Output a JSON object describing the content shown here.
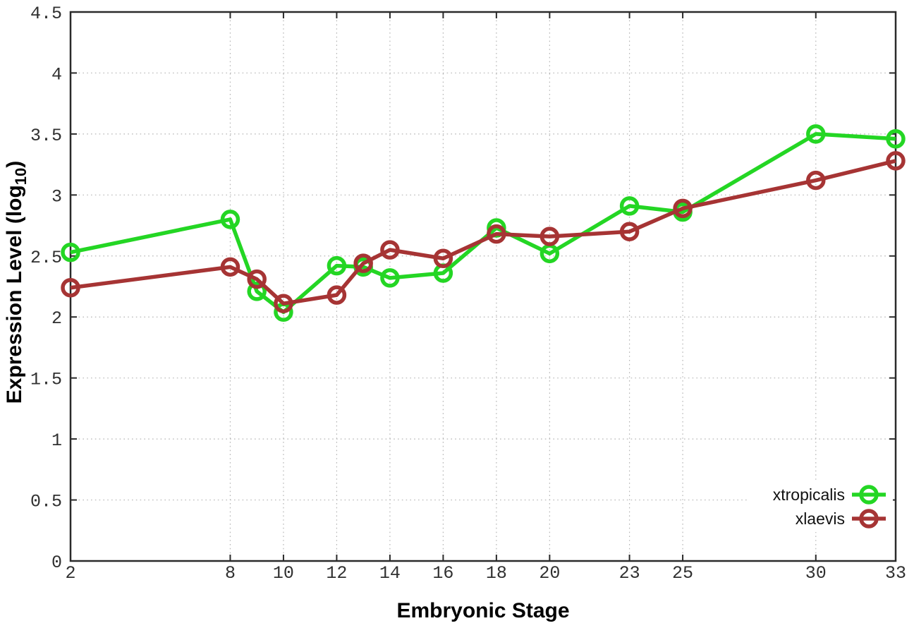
{
  "chart_data": {
    "type": "line",
    "title": "",
    "xlabel": "Embryonic Stage",
    "ylabel": "Expression Level (log10)",
    "ylabel_parts": {
      "main": "Expression Level (log",
      "sub": "10",
      "end": ")"
    },
    "xlim": [
      2,
      33
    ],
    "ylim": [
      0,
      4.5
    ],
    "grid": true,
    "legend_position": "inside-bottom-right",
    "x": [
      2,
      8,
      9,
      10,
      12,
      13,
      14,
      16,
      18,
      20,
      23,
      25,
      30,
      33
    ],
    "xticks": [
      2,
      8,
      10,
      12,
      14,
      16,
      18,
      20,
      23,
      25,
      30,
      33
    ],
    "xtick_labels": [
      "2",
      "8",
      "10",
      "12",
      "14",
      "16",
      "18",
      "20",
      "23",
      "25",
      "30",
      "33"
    ],
    "yticks": [
      0,
      0.5,
      1,
      1.5,
      2,
      2.5,
      3,
      3.5,
      4,
      4.5
    ],
    "ytick_labels": [
      "0",
      "0.5",
      "1",
      "1.5",
      "2",
      "2.5",
      "3",
      "3.5",
      "4",
      "4.5"
    ],
    "series": [
      {
        "name": "xtropicalis",
        "color": "#24d624",
        "values": [
          2.53,
          2.8,
          2.21,
          2.04,
          2.42,
          2.41,
          2.32,
          2.36,
          2.73,
          2.52,
          2.91,
          2.86,
          3.5,
          3.46
        ]
      },
      {
        "name": "xlaevis",
        "color": "#a63434",
        "values": [
          2.24,
          2.41,
          2.31,
          2.11,
          2.18,
          2.44,
          2.55,
          2.48,
          2.68,
          2.66,
          2.7,
          2.89,
          3.12,
          3.28
        ]
      }
    ]
  },
  "style": {
    "background": "#ffffff",
    "grid_color": "#b5b5b5",
    "axis_color": "#2a2a2a",
    "tick_label_color": "#303030",
    "title_color": "#000000"
  }
}
